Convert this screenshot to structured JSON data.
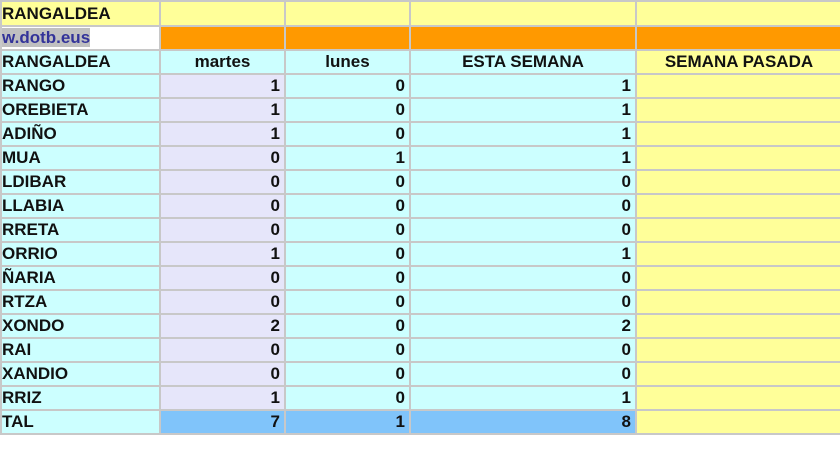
{
  "title": "RANGALDEA",
  "link": "w.dotb.eus",
  "headers": [
    "RANGALDEA",
    "martes",
    "lunes",
    "ESTA SEMANA",
    "SEMANA PASADA"
  ],
  "rows": [
    [
      "RANGO",
      "1",
      "0",
      "1",
      ""
    ],
    [
      "OREBIETA",
      "1",
      "0",
      "1",
      ""
    ],
    [
      "ADIÑO",
      "1",
      "0",
      "1",
      ""
    ],
    [
      "MUA",
      "0",
      "1",
      "1",
      ""
    ],
    [
      "LDIBAR",
      "0",
      "0",
      "0",
      ""
    ],
    [
      "LLABIA",
      "0",
      "0",
      "0",
      ""
    ],
    [
      "RRETA",
      "0",
      "0",
      "0",
      ""
    ],
    [
      "ORRIO",
      "1",
      "0",
      "1",
      ""
    ],
    [
      "ÑARIA",
      "0",
      "0",
      "0",
      ""
    ],
    [
      "RTZA",
      "0",
      "0",
      "0",
      ""
    ],
    [
      "XONDO",
      "2",
      "0",
      "2",
      ""
    ],
    [
      "RAI",
      "0",
      "0",
      "0",
      ""
    ],
    [
      "XANDIO",
      "0",
      "0",
      "0",
      ""
    ],
    [
      "RRIZ",
      "1",
      "0",
      "1",
      ""
    ]
  ],
  "total": [
    "TAL",
    "7",
    "1",
    "8",
    ""
  ],
  "colors": {
    "header_yellow": "#ffff99",
    "orange": "#ff9900",
    "cyan": "#ccffff",
    "lavender": "#e6e6fa",
    "total_blue": "#80c4fa"
  }
}
